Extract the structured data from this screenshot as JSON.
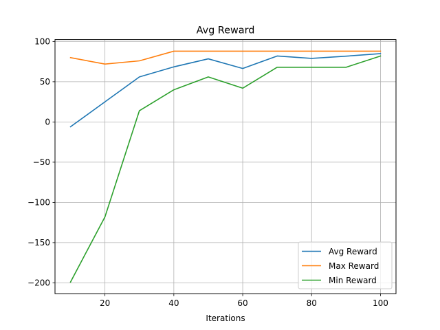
{
  "chart_data": {
    "type": "line",
    "title": "Avg Reward",
    "xlabel": "Iterations",
    "ylabel": "",
    "x": [
      10,
      20,
      30,
      40,
      50,
      60,
      70,
      80,
      90,
      100
    ],
    "series": [
      {
        "name": "Avg Reward",
        "color": "#1f77b4",
        "values": [
          -6,
          25,
          56,
          68.5,
          78.5,
          66.5,
          82,
          79,
          81.8,
          85
        ]
      },
      {
        "name": "Max Reward",
        "color": "#ff7f0e",
        "values": [
          80,
          72,
          76,
          88,
          88,
          88,
          88,
          88,
          88,
          88
        ]
      },
      {
        "name": "Min Reward",
        "color": "#2ca02c",
        "values": [
          -199,
          -118,
          14,
          40,
          56,
          42,
          68,
          68,
          68,
          82
        ]
      }
    ],
    "xlim": [
      5.5,
      104.5
    ],
    "ylim": [
      -213.5,
      102.4
    ],
    "xticks": [
      20,
      40,
      60,
      80,
      100
    ],
    "yticks": [
      -200,
      -150,
      -100,
      -50,
      0,
      50,
      100
    ],
    "ytick_labels": [
      "−200",
      "−150",
      "−100",
      "−50",
      "0",
      "50",
      "100"
    ],
    "grid": true,
    "legend_position": "lower-right"
  }
}
